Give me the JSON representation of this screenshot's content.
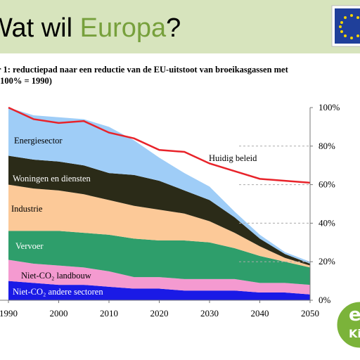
{
  "header": {
    "title_parts": [
      "Wat wil ",
      "Europa",
      "?"
    ]
  },
  "caption": [
    "r 1: reductiepad naar een reductie van de EU-uitstoot van broeikasgassen met",
    "(100% = 1990)"
  ],
  "logo": [
    "e",
    "Ki"
  ],
  "chart_data": {
    "type": "stacked-area",
    "x": [
      1990,
      1995,
      2000,
      2005,
      2010,
      2015,
      2020,
      2025,
      2030,
      2035,
      2040,
      2045,
      2050
    ],
    "xlim": [
      1990,
      2050
    ],
    "xticks": [
      1990,
      2000,
      2010,
      2020,
      2030,
      2040,
      2050
    ],
    "ylim": [
      0,
      100
    ],
    "yticks": [
      {
        "value": 0,
        "label": "0%"
      },
      {
        "value": 20,
        "label": "20%"
      },
      {
        "value": 40,
        "label": "40%"
      },
      {
        "value": 60,
        "label": "60%"
      },
      {
        "value": 80,
        "label": "80%"
      },
      {
        "value": 100,
        "label": "100%"
      }
    ],
    "grid": true,
    "series": [
      {
        "name": "Niet-CO₂ andere sectoren",
        "color": "#1a1ae6",
        "values": [
          10,
          9,
          8,
          8,
          7,
          6,
          6,
          5,
          5,
          5,
          4,
          4,
          3
        ]
      },
      {
        "name": "Niet-CO₂ landbouw",
        "color": "#f49ad0",
        "values": [
          11,
          10,
          10,
          9,
          8,
          6,
          6,
          6,
          6,
          6,
          5,
          5,
          5
        ]
      },
      {
        "name": "Vervoer",
        "color": "#2e9e6b",
        "values": [
          15,
          17,
          18,
          18,
          19,
          20,
          19,
          20,
          19,
          16,
          14,
          11,
          9
        ]
      },
      {
        "name": "Industrie",
        "color": "#fcc998",
        "values": [
          24,
          22,
          21,
          20,
          18,
          17,
          16,
          14,
          11,
          8,
          5,
          2,
          1
        ]
      },
      {
        "name": "Woningen en diensten",
        "color": "#2b2b18",
        "values": [
          15,
          15,
          15,
          15,
          14,
          16,
          15,
          12,
          11,
          8,
          4,
          2,
          1
        ]
      },
      {
        "name": "Energiesector",
        "color": "#9fcdf7",
        "values": [
          25,
          23,
          23,
          24,
          24,
          18,
          12,
          9,
          7,
          3,
          2,
          1,
          1
        ]
      }
    ],
    "line": {
      "name": "Huidig beleid",
      "color": "#e8232a",
      "values": [
        100,
        94,
        92,
        93,
        87,
        84,
        78,
        77,
        71,
        67,
        63,
        62,
        61
      ]
    }
  }
}
